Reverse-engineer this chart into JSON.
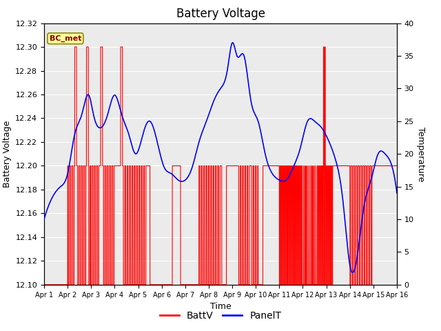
{
  "title": "Battery Voltage",
  "xlabel": "Time",
  "ylabel_left": "Battery Voltage",
  "ylabel_right": "Temperature",
  "ylim_left": [
    12.1,
    12.32
  ],
  "ylim_right": [
    0,
    40
  ],
  "xlim": [
    0,
    15
  ],
  "xtick_labels": [
    "Apr 1",
    "Apr 2",
    "Apr 3",
    "Apr 4",
    "Apr 5",
    "Apr 6",
    "Apr 7",
    "Apr 8",
    "Apr 9",
    "Apr 10",
    "Apr 11",
    "Apr 12",
    "Apr 13",
    "Apr 14",
    "Apr 15",
    "Apr 16"
  ],
  "yticks_left": [
    12.1,
    12.12,
    12.14,
    12.16,
    12.18,
    12.2,
    12.22,
    12.24,
    12.26,
    12.28,
    12.3,
    12.32
  ],
  "yticks_right": [
    0,
    5,
    10,
    15,
    20,
    25,
    30,
    35,
    40
  ],
  "annotation_text": "BC_met",
  "annotation_color_bg": "#FFFF99",
  "annotation_color_border": "#8B8B00",
  "background_color": "#EBEBEB",
  "grid_color": "#FFFFFF",
  "line_color_battv": "#FF0000",
  "line_color_panelt": "#0000FF",
  "legend_labels": [
    "BattV",
    "PanelT"
  ]
}
